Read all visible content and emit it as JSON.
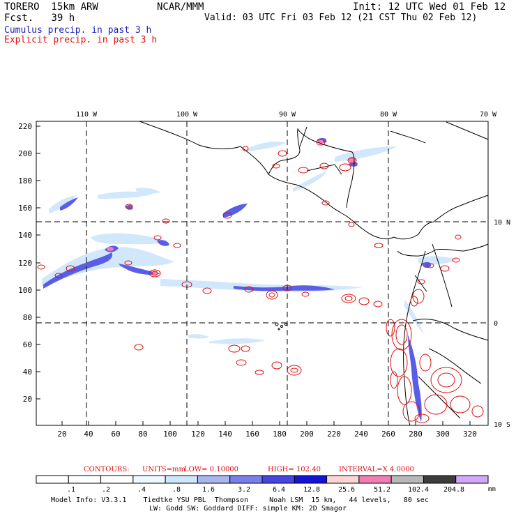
{
  "header": {
    "model": "TORERO  15km ARW",
    "org": "NCAR/MMM",
    "init": "Init: 12 UTC Wed 01 Feb 12",
    "fcst": "Fcst.   39 h",
    "valid": "Valid: 03 UTC Fri 03 Feb 12 (21 CST Thu 02 Feb 12)",
    "field1": "Cumulus precip. in past 3 h",
    "field2": "Explicit precip. in past 3 h"
  },
  "axes": {
    "lon_labels": [
      "110 W",
      "100 W",
      "90 W",
      "80 W",
      "70 W"
    ],
    "lat_labels": [
      "10 N",
      "0",
      "10 S"
    ],
    "y_ticks": [
      "220",
      "200",
      "180",
      "160",
      "140",
      "120",
      "100",
      "80",
      "60",
      "40",
      "20"
    ],
    "x_ticks": [
      "20",
      "40",
      "60",
      "80",
      "100",
      "120",
      "140",
      "160",
      "180",
      "200",
      "220",
      "240",
      "260",
      "280",
      "300",
      "320"
    ]
  },
  "contours": {
    "label": "CONTOURS:",
    "units": "UNITS=mm",
    "low": "LOW= 0.10000",
    "high": "HIGH=  102.40",
    "interval": "INTERVAL=X  4.0000"
  },
  "colorbar": {
    "labels": [
      ".1",
      ".2",
      ".4",
      ".8",
      "1.6",
      "3.2",
      "6.4",
      "12.8",
      "25.6",
      "51.2",
      "102.4",
      "204.8"
    ],
    "unit": "mm",
    "colors": [
      "#ffffff",
      "#ffffff",
      "#ffffff",
      "#eef8ff",
      "#cfe6fb",
      "#aab4f0",
      "#7a80ea",
      "#4646de",
      "#1414d8",
      "#fbd4d4",
      "#f07eb4",
      "#b8b8b8",
      "#3c3c3c",
      "#d2a6f8"
    ]
  },
  "footer": {
    "line1": "Model Info: V3.3.1    Tiedtke YSU PBL  Thompson     Noah LSM  15 km,   44 levels,   80 sec",
    "line2": "LW: Godd SW: Goddard DIFF: simple KM: 2D Smagor"
  }
}
